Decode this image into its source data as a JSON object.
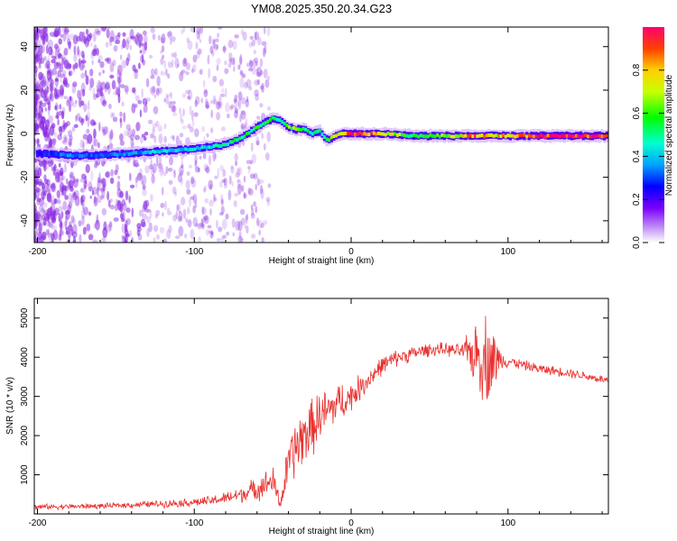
{
  "title": "YM08.2025.350.20.34.G23",
  "colors": {
    "signal_line": "#e8302e",
    "noise_dot": "#8a2be2",
    "axis": "#000000",
    "background": "#ffffff"
  },
  "chart_data": [
    {
      "type": "heatmap",
      "name": "spectrogram",
      "xlabel": "Height of straight line (km)",
      "ylabel": "Frequency (Hz)",
      "xlim": [
        -202,
        164
      ],
      "ylim": [
        -50,
        49
      ],
      "xticks": [
        -200,
        -100,
        0,
        100
      ],
      "yticks": [
        -40,
        -20,
        0,
        20,
        40
      ],
      "ridge": {
        "x": [
          -200,
          -180,
          -160,
          -140,
          -120,
          -100,
          -90,
          -80,
          -70,
          -60,
          -55,
          -50,
          -45,
          -40,
          -35,
          -30,
          -25,
          -20,
          -15,
          -10,
          -5,
          0,
          10,
          20,
          40,
          60,
          80,
          100,
          120,
          164
        ],
        "freq": [
          -9,
          -10,
          -10,
          -9,
          -8,
          -7,
          -6,
          -5,
          -2,
          3,
          5,
          7,
          6,
          3,
          2,
          2,
          0,
          1,
          -3,
          -1,
          0,
          0,
          0,
          0,
          -1,
          -1,
          -1,
          -1,
          -1,
          -1
        ],
        "amplitude": [
          0.25,
          0.35,
          0.3,
          0.35,
          0.4,
          0.4,
          0.45,
          0.45,
          0.5,
          0.55,
          0.55,
          0.55,
          0.5,
          0.6,
          0.6,
          0.55,
          0.5,
          0.5,
          0.55,
          0.7,
          0.8,
          0.95,
          0.9,
          0.75,
          0.55,
          0.65,
          0.85,
          0.75,
          0.95,
          0.95
        ]
      },
      "colorbar": {
        "label": "Normalized spectral amplitude",
        "ticks": [
          0.0,
          0.2,
          0.4,
          0.6,
          0.8
        ],
        "range": [
          0,
          1
        ]
      }
    },
    {
      "type": "line",
      "name": "snr",
      "xlabel": "Height of straight line (km)",
      "ylabel": "SNR (10 * v/v)",
      "xlim": [
        -202,
        164
      ],
      "ylim": [
        0,
        5500
      ],
      "xticks": [
        -200,
        -100,
        0,
        100
      ],
      "yticks": [
        1000,
        2000,
        3000,
        4000,
        5000
      ],
      "series": [
        {
          "name": "SNR",
          "x": [
            -202,
            -180,
            -160,
            -140,
            -120,
            -100,
            -90,
            -80,
            -70,
            -60,
            -50,
            -45,
            -40,
            -35,
            -30,
            -25,
            -20,
            -15,
            -10,
            -5,
            0,
            5,
            10,
            15,
            20,
            30,
            40,
            50,
            60,
            70,
            80,
            85,
            90,
            95,
            100,
            110,
            120,
            140,
            164
          ],
          "y": [
            180,
            190,
            200,
            230,
            260,
            300,
            330,
            400,
            500,
            650,
            850,
            250,
            1300,
            1700,
            2000,
            2200,
            2500,
            2600,
            2800,
            2900,
            3000,
            3200,
            3400,
            3600,
            3800,
            4000,
            4100,
            4200,
            4200,
            4150,
            4100,
            4000,
            3900,
            3950,
            3900,
            3800,
            3700,
            3600,
            3400
          ],
          "noise": [
            80,
            80,
            80,
            90,
            110,
            130,
            150,
            180,
            250,
            350,
            450,
            200,
            800,
            900,
            900,
            850,
            800,
            700,
            650,
            550,
            450,
            400,
            350,
            300,
            280,
            250,
            220,
            200,
            200,
            200,
            1000,
            1400,
            1200,
            300,
            180,
            150,
            150,
            140,
            130
          ]
        }
      ]
    }
  ]
}
